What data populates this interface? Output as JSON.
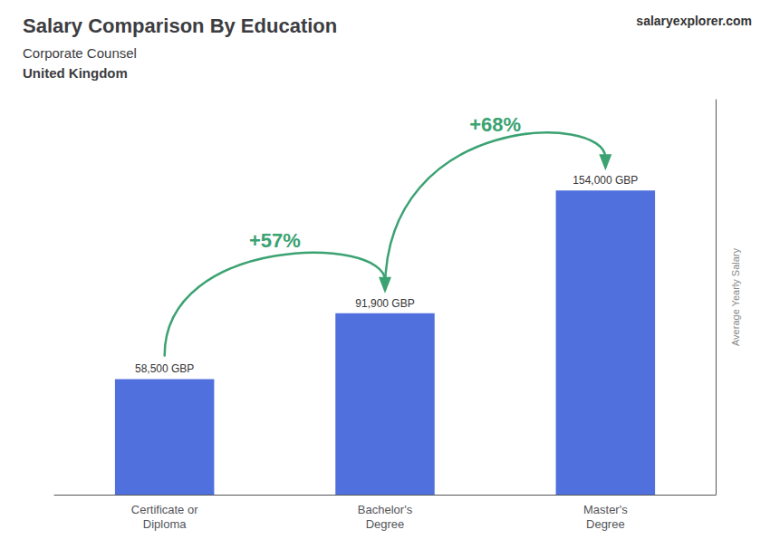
{
  "chart_data": {
    "type": "bar",
    "title": "Salary Comparison By Education",
    "subtitle": [
      "Corporate Counsel",
      "United Kingdom"
    ],
    "ylabel": "Average Yearly Salary",
    "categories": [
      "Certificate or\nDiploma",
      "Bachelor's\nDegree",
      "Master's\nDegree"
    ],
    "values": [
      58500,
      91900,
      154000
    ],
    "value_labels": [
      "58,500 GBP",
      "91,900 GBP",
      "154,000 GBP"
    ],
    "data_labels": true,
    "ylim": [
      0,
      200000
    ],
    "tick_labels": "x",
    "grid": false,
    "annotations": [
      {
        "text": "+57%",
        "color": "#3ba272"
      },
      {
        "text": "+68%",
        "color": "#3ba272"
      },
      {
        "text": "salaryexplorer.com"
      }
    ]
  }
}
